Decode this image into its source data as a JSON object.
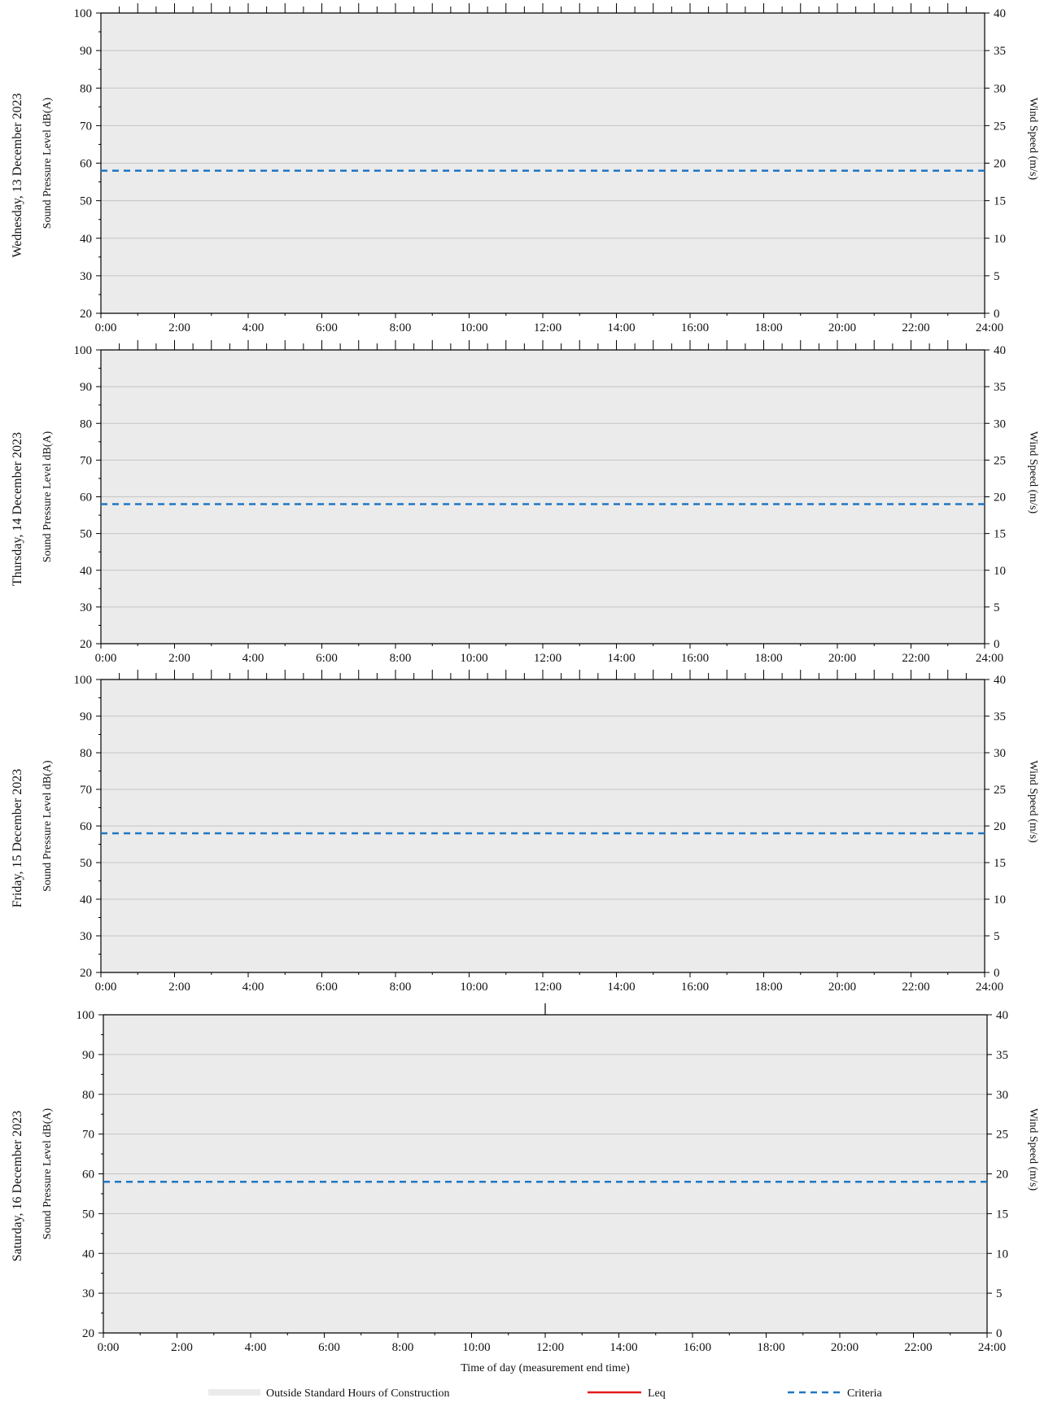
{
  "chart_data": [
    {
      "type": "line",
      "panel_label": "Wednesday, 13 December 2023",
      "xlabel": "",
      "ylabel": "Sound Pressure Level dB(A)",
      "y2label": "Wind Speed (m/s)",
      "xlim": [
        0,
        24
      ],
      "ylim": [
        20,
        100
      ],
      "y2lim": [
        0,
        40
      ],
      "x_ticks": [
        "0:00",
        "2:00",
        "4:00",
        "6:00",
        "8:00",
        "10:00",
        "12:00",
        "14:00",
        "16:00",
        "18:00",
        "20:00",
        "22:00",
        "24:00"
      ],
      "y_ticks": [
        20,
        30,
        40,
        50,
        60,
        70,
        80,
        90,
        100
      ],
      "y2_ticks": [
        0,
        5,
        10,
        15,
        20,
        25,
        30,
        35,
        40
      ],
      "grid": "horizontal",
      "background": "#ebebeb",
      "top_tick_marks": "every 0:30",
      "series": [
        {
          "name": "Criteria",
          "style": "dashed",
          "color": "#1f77c4",
          "x": [
            0,
            24
          ],
          "y": [
            58,
            58
          ]
        },
        {
          "name": "Leq",
          "style": "solid",
          "color": "#e31a1c",
          "x": [],
          "y": []
        }
      ]
    },
    {
      "type": "line",
      "panel_label": "Thursday, 14 December 2023",
      "xlabel": "",
      "ylabel": "Sound Pressure Level dB(A)",
      "y2label": "Wind Speed (m/s)",
      "xlim": [
        0,
        24
      ],
      "ylim": [
        20,
        100
      ],
      "y2lim": [
        0,
        40
      ],
      "x_ticks": [
        "0:00",
        "2:00",
        "4:00",
        "6:00",
        "8:00",
        "10:00",
        "12:00",
        "14:00",
        "16:00",
        "18:00",
        "20:00",
        "22:00",
        "24:00"
      ],
      "y_ticks": [
        20,
        30,
        40,
        50,
        60,
        70,
        80,
        90,
        100
      ],
      "y2_ticks": [
        0,
        5,
        10,
        15,
        20,
        25,
        30,
        35,
        40
      ],
      "grid": "horizontal",
      "background": "#ebebeb",
      "top_tick_marks": "every 0:30",
      "series": [
        {
          "name": "Criteria",
          "style": "dashed",
          "color": "#1f77c4",
          "x": [
            0,
            24
          ],
          "y": [
            58,
            58
          ]
        },
        {
          "name": "Leq",
          "style": "solid",
          "color": "#e31a1c",
          "x": [],
          "y": []
        }
      ]
    },
    {
      "type": "line",
      "panel_label": "Friday, 15 December 2023",
      "xlabel": "",
      "ylabel": "Sound Pressure Level dB(A)",
      "y2label": "Wind Speed (m/s)",
      "xlim": [
        0,
        24
      ],
      "ylim": [
        20,
        100
      ],
      "y2lim": [
        0,
        40
      ],
      "x_ticks": [
        "0:00",
        "2:00",
        "4:00",
        "6:00",
        "8:00",
        "10:00",
        "12:00",
        "14:00",
        "16:00",
        "18:00",
        "20:00",
        "22:00",
        "24:00"
      ],
      "y_ticks": [
        20,
        30,
        40,
        50,
        60,
        70,
        80,
        90,
        100
      ],
      "y2_ticks": [
        0,
        5,
        10,
        15,
        20,
        25,
        30,
        35,
        40
      ],
      "grid": "horizontal",
      "background": "#ebebeb",
      "top_tick_marks": "every 0:30",
      "series": [
        {
          "name": "Criteria",
          "style": "dashed",
          "color": "#1f77c4",
          "x": [
            0,
            24
          ],
          "y": [
            58,
            58
          ]
        },
        {
          "name": "Leq",
          "style": "solid",
          "color": "#e31a1c",
          "x": [],
          "y": []
        }
      ]
    },
    {
      "type": "line",
      "panel_label": "Saturday, 16 December 2023",
      "xlabel": "Time of day (measurement end time)",
      "ylabel": "Sound Pressure Level dB(A)",
      "y2label": "Wind Speed (m/s)",
      "xlim": [
        0,
        24
      ],
      "ylim": [
        20,
        100
      ],
      "y2lim": [
        0,
        40
      ],
      "x_ticks": [
        "0:00",
        "2:00",
        "4:00",
        "6:00",
        "8:00",
        "10:00",
        "12:00",
        "14:00",
        "16:00",
        "18:00",
        "20:00",
        "22:00",
        "24:00"
      ],
      "y_ticks": [
        20,
        30,
        40,
        50,
        60,
        70,
        80,
        90,
        100
      ],
      "y2_ticks": [
        0,
        5,
        10,
        15,
        20,
        25,
        30,
        35,
        40
      ],
      "grid": "horizontal",
      "background": "#ebebeb",
      "top_tick_marks": "single mark at 12:00",
      "series": [
        {
          "name": "Criteria",
          "style": "dashed",
          "color": "#1f77c4",
          "x": [
            0,
            24
          ],
          "y": [
            58,
            58
          ]
        },
        {
          "name": "Leq",
          "style": "solid",
          "color": "#e31a1c",
          "x": [],
          "y": []
        }
      ]
    }
  ],
  "legend": {
    "placement": "bottom",
    "items": [
      {
        "label": "Outside Standard Hours of Construction",
        "kind": "patch",
        "color": "#ebebeb"
      },
      {
        "label": "Leq",
        "kind": "solid",
        "color": "#e31a1c"
      },
      {
        "label": "Criteria",
        "kind": "dashed",
        "color": "#1f77c4"
      }
    ]
  }
}
